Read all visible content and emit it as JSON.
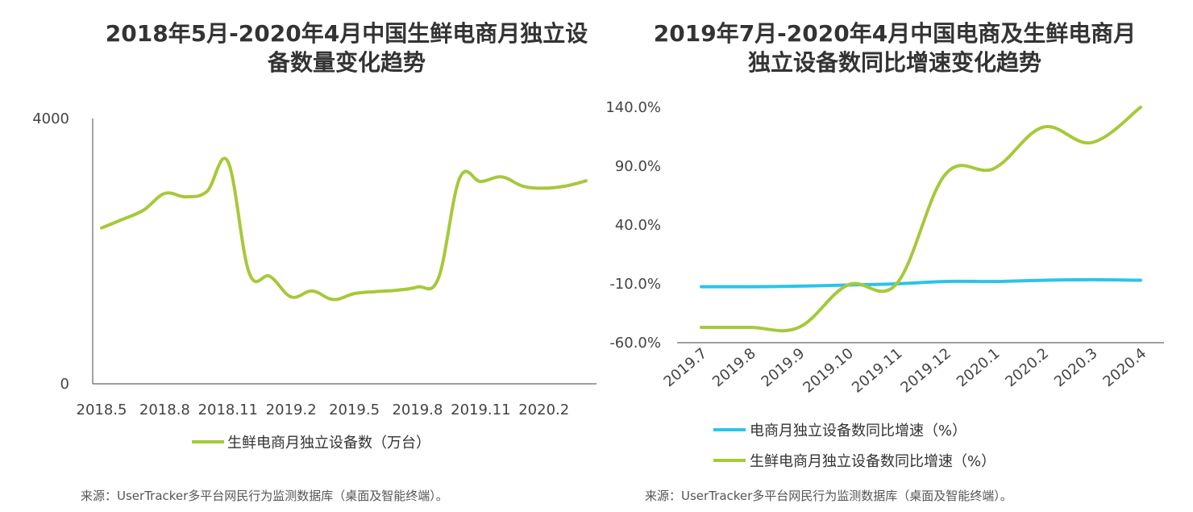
{
  "colors": {
    "green": "#a6c93a",
    "blue": "#2cc3ea",
    "axis": "#666666",
    "text": "#444444"
  },
  "chart_data": [
    {
      "type": "line",
      "title_line1": "2018年5月-2020年4月中国生鲜电商月独立设",
      "title_line2": "备数量变化趋势",
      "ylim": [
        0,
        4000
      ],
      "yticks": [
        "0",
        "4000"
      ],
      "xticks": [
        "2018.5",
        "2018.8",
        "2018.11",
        "2019.2",
        "2019.5",
        "2019.8",
        "2019.11",
        "2020.2"
      ],
      "x": [
        "2018.5",
        "2018.6",
        "2018.7",
        "2018.8",
        "2018.9",
        "2018.10",
        "2018.11",
        "2018.12",
        "2019.1",
        "2019.2",
        "2019.3",
        "2019.4",
        "2019.5",
        "2019.6",
        "2019.7",
        "2019.8",
        "2019.9",
        "2019.10",
        "2019.11",
        "2019.12",
        "2020.1",
        "2020.2",
        "2020.3",
        "2020.4"
      ],
      "series": [
        {
          "name": "生鲜电商月独立设备数（万台）",
          "values": [
            2350,
            2480,
            2620,
            2870,
            2820,
            2900,
            3350,
            1680,
            1620,
            1310,
            1400,
            1270,
            1360,
            1390,
            1410,
            1460,
            1600,
            3100,
            3050,
            3120,
            2980,
            2950,
            2980,
            3060
          ]
        }
      ]
    },
    {
      "type": "line",
      "title_line1": "2019年7月-2020年4月中国电商及生鲜电商月",
      "title_line2": "独立设备数同比增速变化趋势",
      "ylim": [
        -60,
        140
      ],
      "yticks": [
        "-60.0%",
        "-10.0%",
        "40.0%",
        "90.0%",
        "140.0%"
      ],
      "ytick_values": [
        -60,
        -10,
        40,
        90,
        140
      ],
      "x": [
        "2019.7",
        "2019.8",
        "2019.9",
        "2019.10",
        "2019.11",
        "2019.12",
        "2020.1",
        "2020.2",
        "2020.3",
        "2020.4"
      ],
      "series": [
        {
          "name": "电商月独立设备数同比增速（%）",
          "values": [
            -12.5,
            -12.5,
            -12.0,
            -11.0,
            -10.0,
            -8.0,
            -8.0,
            -7.0,
            -6.5,
            -7.0
          ]
        },
        {
          "name": "生鲜电商月独立设备数同比增速（%）",
          "values": [
            -47,
            -47,
            -47,
            -11,
            -10,
            83,
            88,
            123,
            110,
            140
          ]
        }
      ]
    }
  ],
  "sources": {
    "left": "来源：UserTracker多平台网民行为监测数据库（桌面及智能终端）。",
    "right": "来源：UserTracker多平台网民行为监测数据库（桌面及智能终端）。"
  }
}
